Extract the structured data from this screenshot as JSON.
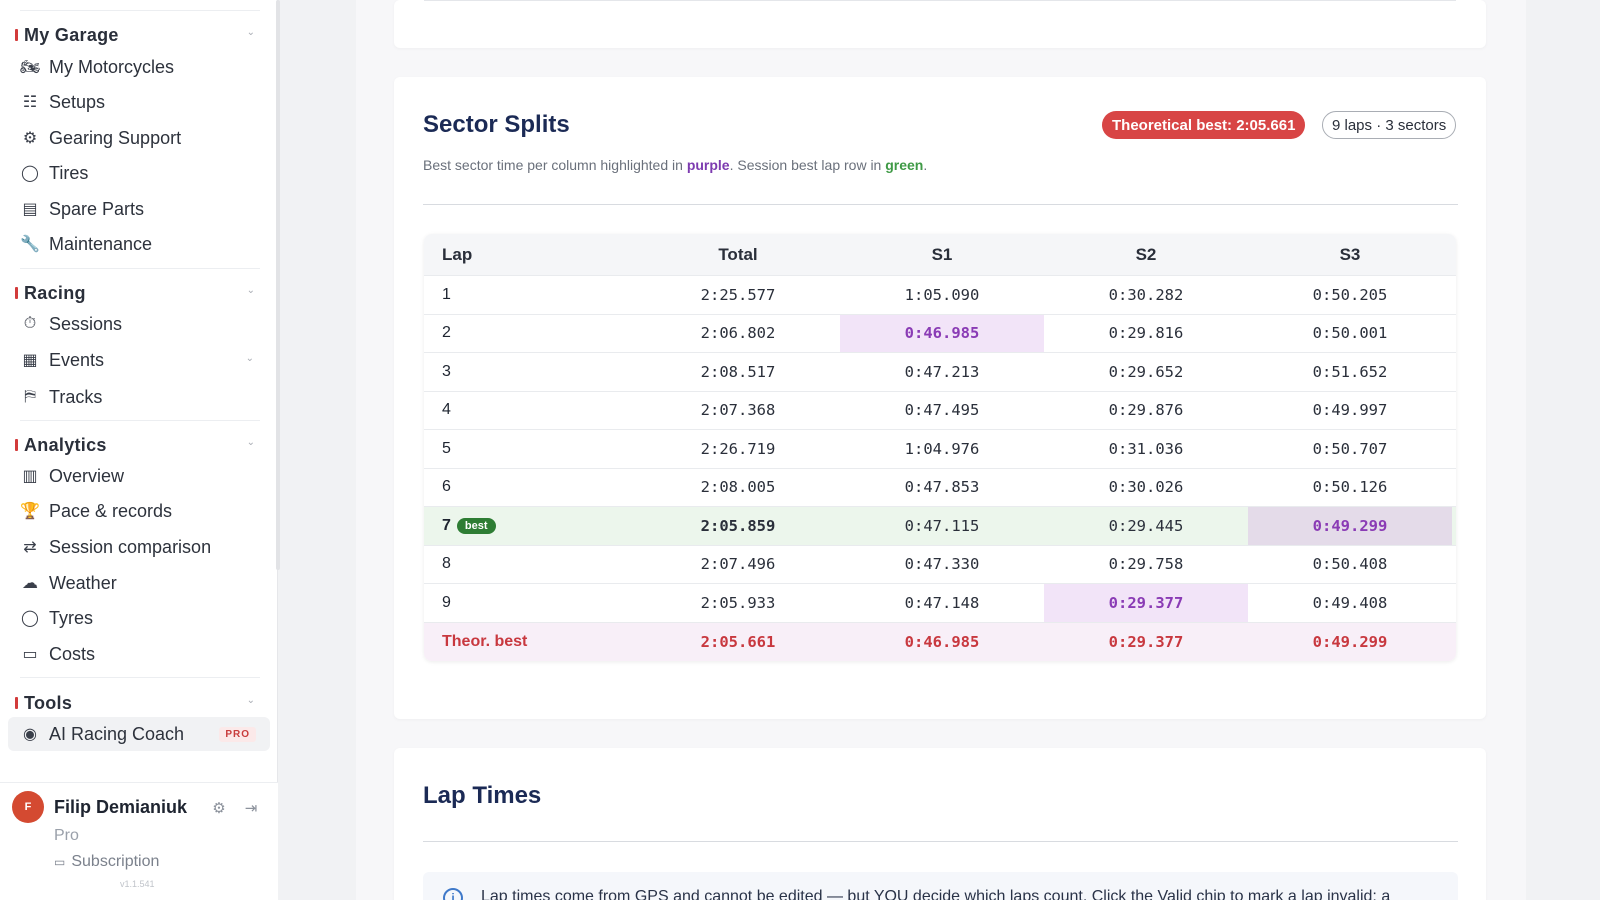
{
  "sidebar": {
    "sections": [
      {
        "title": "My Garage",
        "items": [
          {
            "icon": "motorcycle-icon",
            "glyph": "🏍",
            "label": "My Motorcycles"
          },
          {
            "icon": "sliders-icon",
            "glyph": "☷",
            "label": "Setups"
          },
          {
            "icon": "gear-icon",
            "glyph": "⚙",
            "label": "Gearing Support"
          },
          {
            "icon": "tire-icon",
            "glyph": "◯",
            "label": "Tires"
          },
          {
            "icon": "archive-icon",
            "glyph": "▤",
            "label": "Spare Parts"
          },
          {
            "icon": "wrench-icon",
            "glyph": "🔧",
            "label": "Maintenance"
          }
        ]
      },
      {
        "title": "Racing",
        "items": [
          {
            "icon": "stopwatch-icon",
            "glyph": "⏱",
            "label": "Sessions"
          },
          {
            "icon": "calendar-icon",
            "glyph": "▦",
            "label": "Events"
          },
          {
            "icon": "track-icon",
            "glyph": "⛿",
            "label": "Tracks"
          }
        ]
      },
      {
        "title": "Analytics",
        "items": [
          {
            "icon": "bar-chart-icon",
            "glyph": "▥",
            "label": "Overview"
          },
          {
            "icon": "trophy-icon",
            "glyph": "🏆",
            "label": "Pace & records"
          },
          {
            "icon": "compare-icon",
            "glyph": "⇄",
            "label": "Session comparison"
          },
          {
            "icon": "cloud-icon",
            "glyph": "☁",
            "label": "Weather"
          },
          {
            "icon": "tyre-icon",
            "glyph": "◯",
            "label": "Tyres"
          },
          {
            "icon": "credit-card-icon",
            "glyph": "▭",
            "label": "Costs"
          }
        ]
      },
      {
        "title": "Tools",
        "items": [
          {
            "icon": "brain-icon",
            "glyph": "◉",
            "label": "AI Racing Coach",
            "badge": "PRO"
          }
        ]
      }
    ],
    "user": {
      "initial": "F",
      "name": "Filip Demianiuk",
      "plan": "Pro",
      "subscription_label": "Subscription",
      "version": "v1.1.541"
    }
  },
  "sector_splits": {
    "title": "Sector Splits",
    "theoretical_best_chip": "Theoretical best: 2:05.661",
    "laps_chip": "9 laps · 3 sectors",
    "subtitle_prefix": "Best sector time per column highlighted in ",
    "subtitle_purple": "purple",
    "subtitle_middle": ". Session best lap row in ",
    "subtitle_green": "green",
    "subtitle_suffix": ".",
    "columns": [
      "Lap",
      "Total",
      "S1",
      "S2",
      "S3"
    ],
    "rows": [
      {
        "lap": "1",
        "total": "2:25.577",
        "s1": "1:05.090",
        "s2": "0:30.282",
        "s3": "0:50.205"
      },
      {
        "lap": "2",
        "total": "2:06.802",
        "s1": "0:46.985",
        "s2": "0:29.816",
        "s3": "0:50.001",
        "hl": [
          "s1"
        ]
      },
      {
        "lap": "3",
        "total": "2:08.517",
        "s1": "0:47.213",
        "s2": "0:29.652",
        "s3": "0:51.652"
      },
      {
        "lap": "4",
        "total": "2:07.368",
        "s1": "0:47.495",
        "s2": "0:29.876",
        "s3": "0:49.997"
      },
      {
        "lap": "5",
        "total": "2:26.719",
        "s1": "1:04.976",
        "s2": "0:31.036",
        "s3": "0:50.707"
      },
      {
        "lap": "6",
        "total": "2:08.005",
        "s1": "0:47.853",
        "s2": "0:30.026",
        "s3": "0:50.126"
      },
      {
        "lap": "7",
        "total": "2:05.859",
        "s1": "0:47.115",
        "s2": "0:29.445",
        "s3": "0:49.299",
        "best": true,
        "badge": "best",
        "hl": [
          "s3"
        ]
      },
      {
        "lap": "8",
        "total": "2:07.496",
        "s1": "0:47.330",
        "s2": "0:29.758",
        "s3": "0:50.408"
      },
      {
        "lap": "9",
        "total": "2:05.933",
        "s1": "0:47.148",
        "s2": "0:29.377",
        "s3": "0:49.408",
        "hl": [
          "s2"
        ]
      }
    ],
    "theoretical_row": {
      "lap": "Theor. best",
      "total": "2:05.661",
      "s1": "0:46.985",
      "s2": "0:29.377",
      "s3": "0:49.299"
    }
  },
  "lap_times": {
    "title": "Lap Times",
    "info": "Lap times come from GPS and cannot be edited — but YOU decide which laps count. Click the Valid chip to mark a lap invalid; a"
  },
  "colors": {
    "accent_red": "#d84545",
    "best_sector_purple": "#8a3bb5",
    "best_lap_green": "#2e7d34",
    "heading_navy": "#1b2a55"
  }
}
